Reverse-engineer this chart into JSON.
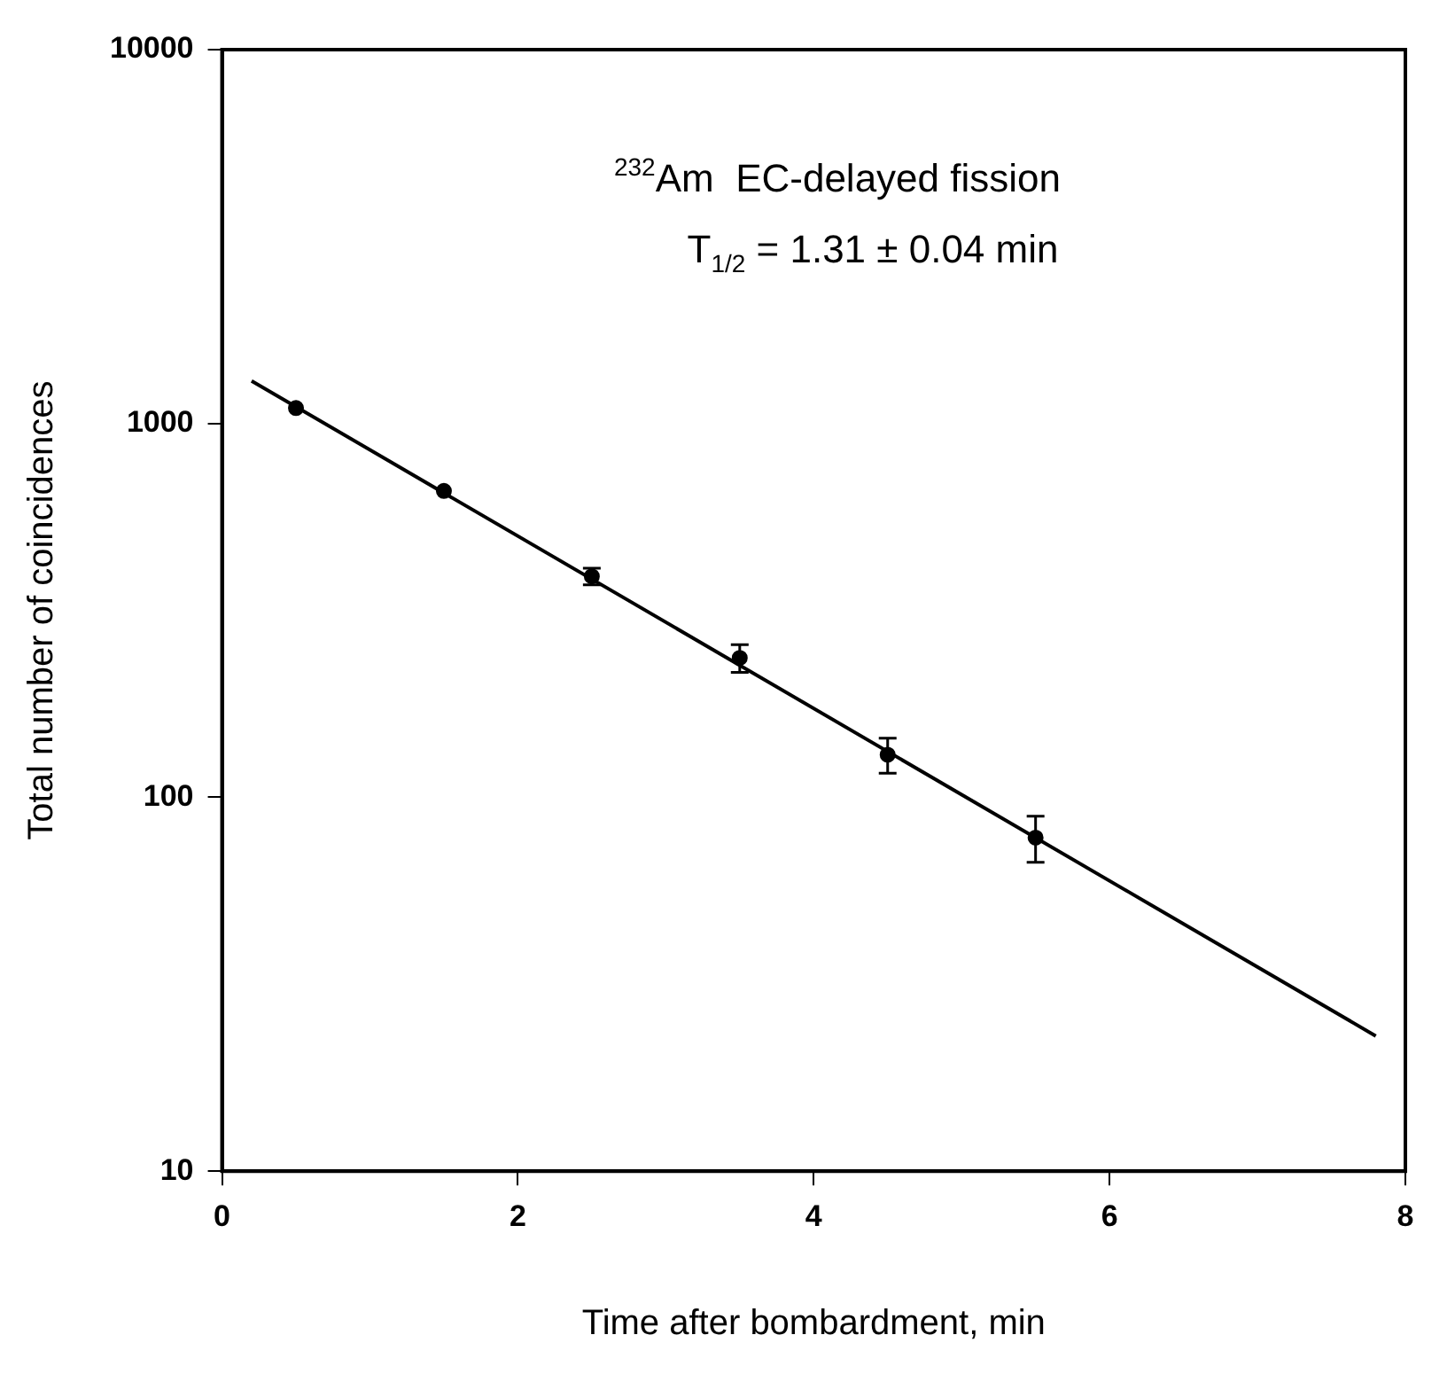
{
  "chart_data": {
    "type": "scatter",
    "xlabel": "Time after bombardment, min",
    "ylabel": "Total number of coincidences",
    "log": "y",
    "grid": false,
    "marker": "circle",
    "xlim": [
      0,
      8
    ],
    "xticks": [
      0,
      2,
      4,
      6,
      8
    ],
    "ylim": [
      10,
      10000
    ],
    "yticks": [
      10,
      100,
      1000,
      10000
    ],
    "annotations": [
      {
        "text": "$^{232}$Am  EC-delayed fission"
      },
      {
        "text": "T$_{1/2}$ = 1.31 ± 0.04 min"
      }
    ],
    "series": [
      {
        "color": "#000000",
        "x": [
          0.5,
          1.5,
          2.5,
          3.5,
          4.5,
          5.5
        ],
        "values": [
          1100,
          660,
          390,
          236,
          130,
          78
        ],
        "errors": [
          null,
          null,
          20,
          20,
          14,
          11
        ]
      },
      {
        "type": "line",
        "color": "#000000",
        "marker": "none",
        "x": [
          0.2,
          7.8
        ],
        "values": [
          1300,
          23
        ]
      }
    ]
  }
}
